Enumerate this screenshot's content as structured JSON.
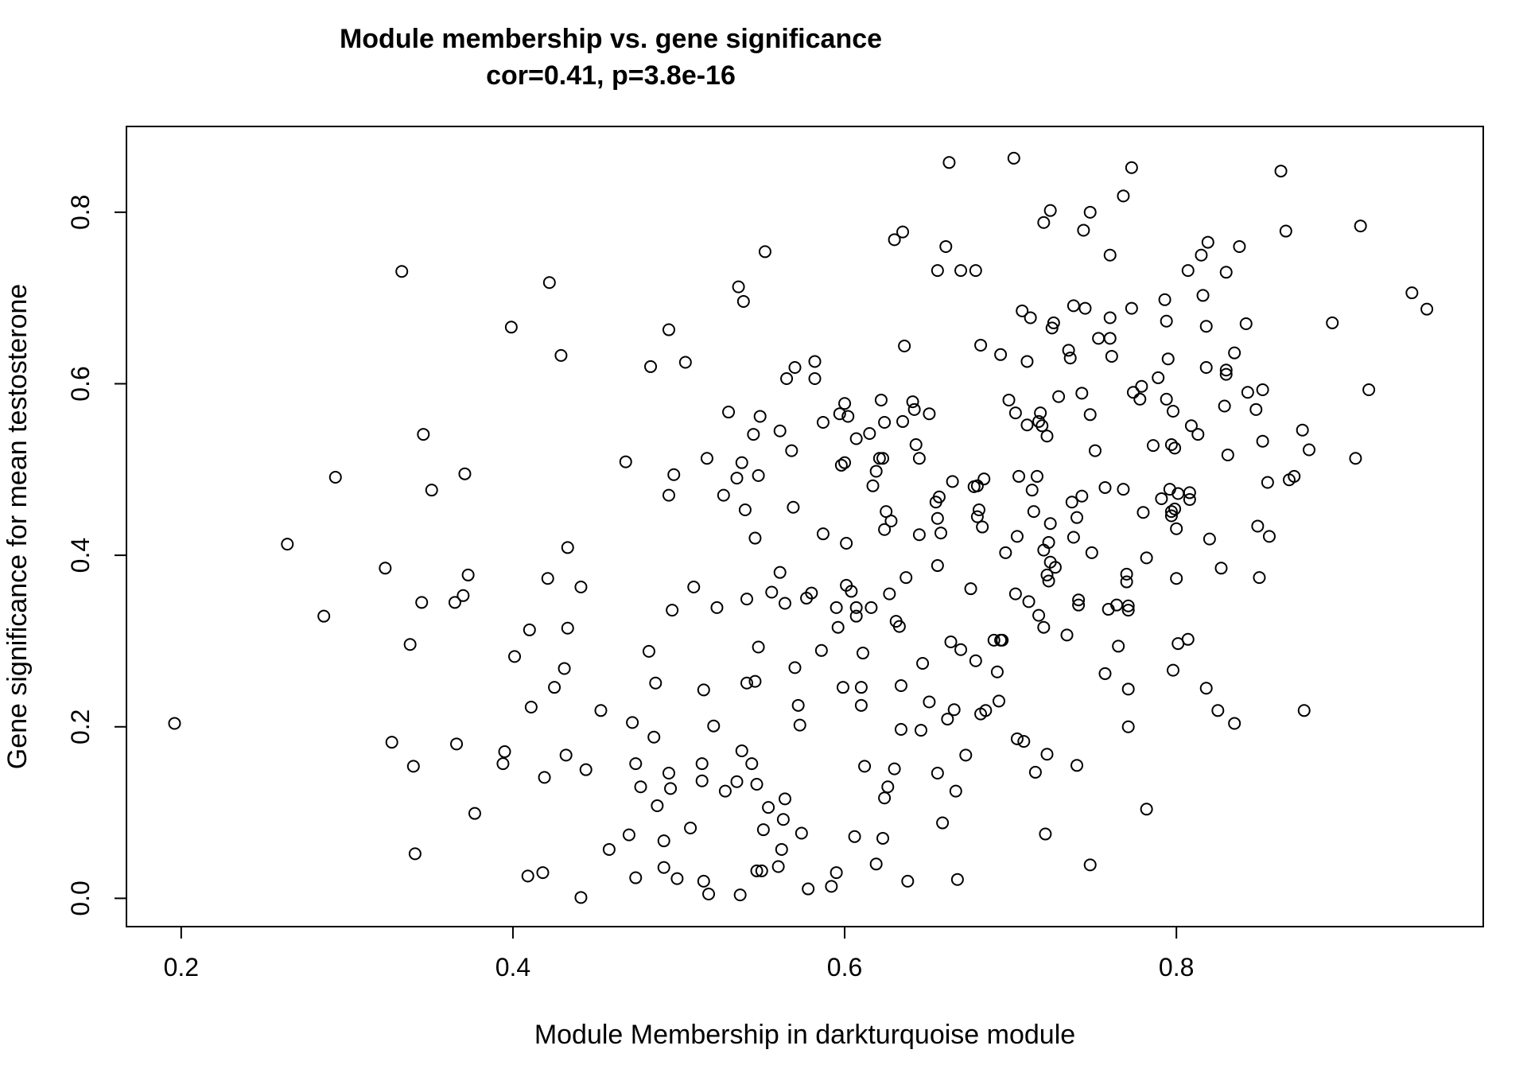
{
  "chart_data": {
    "type": "scatter",
    "title": "Module membership vs. gene significance",
    "subtitle": "cor=0.41, p=3.8e-16",
    "xlabel": "Module Membership in darkturquoise module",
    "ylabel": "Gene significance for mean testosterone",
    "xlim": [
      0.167,
      0.985
    ],
    "ylim": [
      -0.033,
      0.9
    ],
    "xticks": [
      0.2,
      0.4,
      0.6,
      0.8
    ],
    "xtick_labels": [
      "0.2",
      "0.4",
      "0.6",
      "0.8"
    ],
    "yticks": [
      0.0,
      0.2,
      0.4,
      0.6,
      0.8
    ],
    "ytick_labels": [
      "0.0",
      "0.2",
      "0.4",
      "0.6",
      "0.8"
    ],
    "grid": false,
    "legend": "none",
    "marker": "open-circle",
    "color": "#000000",
    "points": [
      [
        0.196,
        0.204
      ],
      [
        0.264,
        0.413
      ],
      [
        0.286,
        0.329
      ],
      [
        0.293,
        0.491
      ],
      [
        0.323,
        0.385
      ],
      [
        0.327,
        0.182
      ],
      [
        0.333,
        0.731
      ],
      [
        0.338,
        0.296
      ],
      [
        0.34,
        0.154
      ],
      [
        0.341,
        0.052
      ],
      [
        0.345,
        0.345
      ],
      [
        0.346,
        0.541
      ],
      [
        0.351,
        0.476
      ],
      [
        0.365,
        0.345
      ],
      [
        0.366,
        0.18
      ],
      [
        0.37,
        0.353
      ],
      [
        0.371,
        0.495
      ],
      [
        0.373,
        0.377
      ],
      [
        0.377,
        0.099
      ],
      [
        0.394,
        0.157
      ],
      [
        0.395,
        0.171
      ],
      [
        0.399,
        0.666
      ],
      [
        0.401,
        0.282
      ],
      [
        0.409,
        0.026
      ],
      [
        0.41,
        0.313
      ],
      [
        0.411,
        0.223
      ],
      [
        0.418,
        0.03
      ],
      [
        0.419,
        0.141
      ],
      [
        0.421,
        0.373
      ],
      [
        0.422,
        0.718
      ],
      [
        0.425,
        0.246
      ],
      [
        0.429,
        0.633
      ],
      [
        0.431,
        0.268
      ],
      [
        0.432,
        0.167
      ],
      [
        0.433,
        0.409
      ],
      [
        0.433,
        0.315
      ],
      [
        0.441,
        0.363
      ],
      [
        0.441,
        0.001
      ],
      [
        0.444,
        0.15
      ],
      [
        0.453,
        0.219
      ],
      [
        0.458,
        0.057
      ],
      [
        0.468,
        0.509
      ],
      [
        0.47,
        0.074
      ],
      [
        0.472,
        0.205
      ],
      [
        0.474,
        0.157
      ],
      [
        0.474,
        0.024
      ],
      [
        0.477,
        0.13
      ],
      [
        0.482,
        0.288
      ],
      [
        0.483,
        0.62
      ],
      [
        0.485,
        0.188
      ],
      [
        0.486,
        0.251
      ],
      [
        0.487,
        0.108
      ],
      [
        0.491,
        0.067
      ],
      [
        0.491,
        0.036
      ],
      [
        0.494,
        0.663
      ],
      [
        0.494,
        0.47
      ],
      [
        0.494,
        0.146
      ],
      [
        0.495,
        0.128
      ],
      [
        0.496,
        0.336
      ],
      [
        0.497,
        0.494
      ],
      [
        0.499,
        0.023
      ],
      [
        0.504,
        0.625
      ],
      [
        0.507,
        0.082
      ],
      [
        0.509,
        0.363
      ],
      [
        0.514,
        0.157
      ],
      [
        0.514,
        0.137
      ],
      [
        0.515,
        0.02
      ],
      [
        0.515,
        0.243
      ],
      [
        0.517,
        0.513
      ],
      [
        0.518,
        0.005
      ],
      [
        0.521,
        0.201
      ],
      [
        0.523,
        0.339
      ],
      [
        0.527,
        0.47
      ],
      [
        0.528,
        0.125
      ],
      [
        0.53,
        0.567
      ],
      [
        0.535,
        0.136
      ],
      [
        0.535,
        0.49
      ],
      [
        0.536,
        0.713
      ],
      [
        0.537,
        0.004
      ],
      [
        0.538,
        0.508
      ],
      [
        0.538,
        0.172
      ],
      [
        0.539,
        0.696
      ],
      [
        0.54,
        0.453
      ],
      [
        0.541,
        0.251
      ],
      [
        0.541,
        0.349
      ],
      [
        0.544,
        0.157
      ],
      [
        0.545,
        0.541
      ],
      [
        0.546,
        0.253
      ],
      [
        0.546,
        0.42
      ],
      [
        0.547,
        0.032
      ],
      [
        0.547,
        0.133
      ],
      [
        0.548,
        0.493
      ],
      [
        0.548,
        0.293
      ],
      [
        0.549,
        0.562
      ],
      [
        0.55,
        0.032
      ],
      [
        0.551,
        0.08
      ],
      [
        0.552,
        0.754
      ],
      [
        0.554,
        0.106
      ],
      [
        0.556,
        0.357
      ],
      [
        0.56,
        0.037
      ],
      [
        0.561,
        0.545
      ],
      [
        0.561,
        0.38
      ],
      [
        0.562,
        0.057
      ],
      [
        0.563,
        0.092
      ],
      [
        0.564,
        0.344
      ],
      [
        0.564,
        0.116
      ],
      [
        0.565,
        0.606
      ],
      [
        0.568,
        0.522
      ],
      [
        0.569,
        0.456
      ],
      [
        0.57,
        0.619
      ],
      [
        0.57,
        0.269
      ],
      [
        0.572,
        0.225
      ],
      [
        0.573,
        0.202
      ],
      [
        0.574,
        0.076
      ],
      [
        0.577,
        0.35
      ],
      [
        0.578,
        0.011
      ],
      [
        0.58,
        0.356
      ],
      [
        0.582,
        0.626
      ],
      [
        0.582,
        0.606
      ],
      [
        0.586,
        0.289
      ],
      [
        0.587,
        0.555
      ],
      [
        0.587,
        0.425
      ],
      [
        0.592,
        0.014
      ],
      [
        0.595,
        0.03
      ],
      [
        0.595,
        0.339
      ],
      [
        0.596,
        0.316
      ],
      [
        0.597,
        0.565
      ],
      [
        0.598,
        0.505
      ],
      [
        0.599,
        0.246
      ],
      [
        0.6,
        0.577
      ],
      [
        0.6,
        0.508
      ],
      [
        0.601,
        0.414
      ],
      [
        0.601,
        0.365
      ],
      [
        0.602,
        0.562
      ],
      [
        0.604,
        0.358
      ],
      [
        0.606,
        0.072
      ],
      [
        0.607,
        0.536
      ],
      [
        0.607,
        0.329
      ],
      [
        0.607,
        0.339
      ],
      [
        0.61,
        0.246
      ],
      [
        0.61,
        0.225
      ],
      [
        0.611,
        0.286
      ],
      [
        0.612,
        0.154
      ],
      [
        0.615,
        0.542
      ],
      [
        0.616,
        0.339
      ],
      [
        0.617,
        0.481
      ],
      [
        0.619,
        0.04
      ],
      [
        0.619,
        0.498
      ],
      [
        0.621,
        0.513
      ],
      [
        0.622,
        0.581
      ],
      [
        0.623,
        0.513
      ],
      [
        0.623,
        0.07
      ],
      [
        0.624,
        0.117
      ],
      [
        0.624,
        0.555
      ],
      [
        0.624,
        0.43
      ],
      [
        0.625,
        0.451
      ],
      [
        0.626,
        0.13
      ],
      [
        0.627,
        0.355
      ],
      [
        0.628,
        0.44
      ],
      [
        0.63,
        0.768
      ],
      [
        0.63,
        0.151
      ],
      [
        0.631,
        0.323
      ],
      [
        0.633,
        0.317
      ],
      [
        0.634,
        0.197
      ],
      [
        0.634,
        0.248
      ],
      [
        0.635,
        0.556
      ],
      [
        0.635,
        0.777
      ],
      [
        0.636,
        0.644
      ],
      [
        0.637,
        0.374
      ],
      [
        0.638,
        0.02
      ],
      [
        0.641,
        0.579
      ],
      [
        0.642,
        0.57
      ],
      [
        0.643,
        0.529
      ],
      [
        0.645,
        0.513
      ],
      [
        0.645,
        0.424
      ],
      [
        0.646,
        0.196
      ],
      [
        0.647,
        0.274
      ],
      [
        0.651,
        0.565
      ],
      [
        0.651,
        0.229
      ],
      [
        0.655,
        0.462
      ],
      [
        0.656,
        0.732
      ],
      [
        0.656,
        0.443
      ],
      [
        0.656,
        0.388
      ],
      [
        0.656,
        0.146
      ],
      [
        0.657,
        0.468
      ],
      [
        0.658,
        0.426
      ],
      [
        0.659,
        0.088
      ],
      [
        0.661,
        0.76
      ],
      [
        0.662,
        0.209
      ],
      [
        0.663,
        0.858
      ],
      [
        0.664,
        0.299
      ],
      [
        0.665,
        0.486
      ],
      [
        0.666,
        0.22
      ],
      [
        0.667,
        0.125
      ],
      [
        0.668,
        0.022
      ],
      [
        0.67,
        0.732
      ],
      [
        0.67,
        0.29
      ],
      [
        0.673,
        0.167
      ],
      [
        0.676,
        0.361
      ],
      [
        0.678,
        0.48
      ],
      [
        0.679,
        0.732
      ],
      [
        0.679,
        0.277
      ],
      [
        0.68,
        0.481
      ],
      [
        0.68,
        0.445
      ],
      [
        0.681,
        0.453
      ],
      [
        0.682,
        0.215
      ],
      [
        0.682,
        0.645
      ],
      [
        0.683,
        0.433
      ],
      [
        0.684,
        0.489
      ],
      [
        0.685,
        0.219
      ],
      [
        0.69,
        0.301
      ],
      [
        0.692,
        0.264
      ],
      [
        0.693,
        0.23
      ],
      [
        0.694,
        0.301
      ],
      [
        0.694,
        0.634
      ],
      [
        0.695,
        0.301
      ],
      [
        0.697,
        0.403
      ],
      [
        0.699,
        0.581
      ],
      [
        0.702,
        0.863
      ],
      [
        0.703,
        0.355
      ],
      [
        0.703,
        0.566
      ],
      [
        0.704,
        0.186
      ],
      [
        0.704,
        0.422
      ],
      [
        0.705,
        0.492
      ],
      [
        0.707,
        0.685
      ],
      [
        0.708,
        0.183
      ],
      [
        0.71,
        0.626
      ],
      [
        0.71,
        0.552
      ],
      [
        0.711,
        0.346
      ],
      [
        0.712,
        0.677
      ],
      [
        0.713,
        0.476
      ],
      [
        0.714,
        0.451
      ],
      [
        0.715,
        0.147
      ],
      [
        0.716,
        0.492
      ],
      [
        0.717,
        0.556
      ],
      [
        0.717,
        0.33
      ],
      [
        0.718,
        0.566
      ],
      [
        0.719,
        0.551
      ],
      [
        0.72,
        0.406
      ],
      [
        0.72,
        0.788
      ],
      [
        0.72,
        0.316
      ],
      [
        0.721,
        0.075
      ],
      [
        0.722,
        0.168
      ],
      [
        0.722,
        0.377
      ],
      [
        0.722,
        0.539
      ],
      [
        0.723,
        0.415
      ],
      [
        0.723,
        0.37
      ],
      [
        0.724,
        0.437
      ],
      [
        0.724,
        0.802
      ],
      [
        0.724,
        0.392
      ],
      [
        0.725,
        0.665
      ],
      [
        0.726,
        0.671
      ],
      [
        0.727,
        0.386
      ],
      [
        0.729,
        0.585
      ],
      [
        0.734,
        0.307
      ],
      [
        0.735,
        0.639
      ],
      [
        0.736,
        0.63
      ],
      [
        0.737,
        0.462
      ],
      [
        0.738,
        0.691
      ],
      [
        0.738,
        0.421
      ],
      [
        0.74,
        0.155
      ],
      [
        0.74,
        0.444
      ],
      [
        0.741,
        0.348
      ],
      [
        0.741,
        0.342
      ],
      [
        0.743,
        0.589
      ],
      [
        0.743,
        0.469
      ],
      [
        0.744,
        0.779
      ],
      [
        0.745,
        0.688
      ],
      [
        0.748,
        0.8
      ],
      [
        0.748,
        0.039
      ],
      [
        0.748,
        0.564
      ],
      [
        0.749,
        0.403
      ],
      [
        0.751,
        0.522
      ],
      [
        0.753,
        0.653
      ],
      [
        0.757,
        0.262
      ],
      [
        0.757,
        0.479
      ],
      [
        0.759,
        0.337
      ],
      [
        0.76,
        0.653
      ],
      [
        0.76,
        0.75
      ],
      [
        0.76,
        0.677
      ],
      [
        0.761,
        0.632
      ],
      [
        0.764,
        0.342
      ],
      [
        0.765,
        0.294
      ],
      [
        0.768,
        0.819
      ],
      [
        0.768,
        0.477
      ],
      [
        0.77,
        0.369
      ],
      [
        0.77,
        0.378
      ],
      [
        0.771,
        0.341
      ],
      [
        0.771,
        0.336
      ],
      [
        0.771,
        0.244
      ],
      [
        0.771,
        0.2
      ],
      [
        0.773,
        0.852
      ],
      [
        0.773,
        0.688
      ],
      [
        0.774,
        0.59
      ],
      [
        0.778,
        0.582
      ],
      [
        0.779,
        0.597
      ],
      [
        0.78,
        0.45
      ],
      [
        0.782,
        0.397
      ],
      [
        0.782,
        0.104
      ],
      [
        0.786,
        0.528
      ],
      [
        0.789,
        0.607
      ],
      [
        0.791,
        0.466
      ],
      [
        0.793,
        0.698
      ],
      [
        0.794,
        0.582
      ],
      [
        0.794,
        0.673
      ],
      [
        0.795,
        0.629
      ],
      [
        0.796,
        0.477
      ],
      [
        0.797,
        0.451
      ],
      [
        0.797,
        0.529
      ],
      [
        0.797,
        0.446
      ],
      [
        0.798,
        0.568
      ],
      [
        0.798,
        0.266
      ],
      [
        0.799,
        0.454
      ],
      [
        0.799,
        0.525
      ],
      [
        0.8,
        0.373
      ],
      [
        0.8,
        0.431
      ],
      [
        0.801,
        0.472
      ],
      [
        0.801,
        0.297
      ],
      [
        0.807,
        0.732
      ],
      [
        0.807,
        0.302
      ],
      [
        0.808,
        0.465
      ],
      [
        0.808,
        0.473
      ],
      [
        0.809,
        0.551
      ],
      [
        0.813,
        0.541
      ],
      [
        0.815,
        0.75
      ],
      [
        0.816,
        0.703
      ],
      [
        0.818,
        0.245
      ],
      [
        0.818,
        0.619
      ],
      [
        0.818,
        0.667
      ],
      [
        0.819,
        0.765
      ],
      [
        0.82,
        0.419
      ],
      [
        0.825,
        0.219
      ],
      [
        0.827,
        0.385
      ],
      [
        0.829,
        0.574
      ],
      [
        0.83,
        0.616
      ],
      [
        0.83,
        0.611
      ],
      [
        0.83,
        0.73
      ],
      [
        0.831,
        0.517
      ],
      [
        0.835,
        0.636
      ],
      [
        0.835,
        0.204
      ],
      [
        0.838,
        0.76
      ],
      [
        0.842,
        0.67
      ],
      [
        0.843,
        0.59
      ],
      [
        0.848,
        0.57
      ],
      [
        0.849,
        0.434
      ],
      [
        0.85,
        0.374
      ],
      [
        0.852,
        0.593
      ],
      [
        0.852,
        0.533
      ],
      [
        0.855,
        0.485
      ],
      [
        0.856,
        0.422
      ],
      [
        0.863,
        0.848
      ],
      [
        0.866,
        0.778
      ],
      [
        0.868,
        0.488
      ],
      [
        0.871,
        0.492
      ],
      [
        0.876,
        0.546
      ],
      [
        0.877,
        0.219
      ],
      [
        0.88,
        0.523
      ],
      [
        0.894,
        0.671
      ],
      [
        0.908,
        0.513
      ],
      [
        0.911,
        0.784
      ],
      [
        0.916,
        0.593
      ],
      [
        0.942,
        0.706
      ],
      [
        0.951,
        0.687
      ]
    ]
  }
}
